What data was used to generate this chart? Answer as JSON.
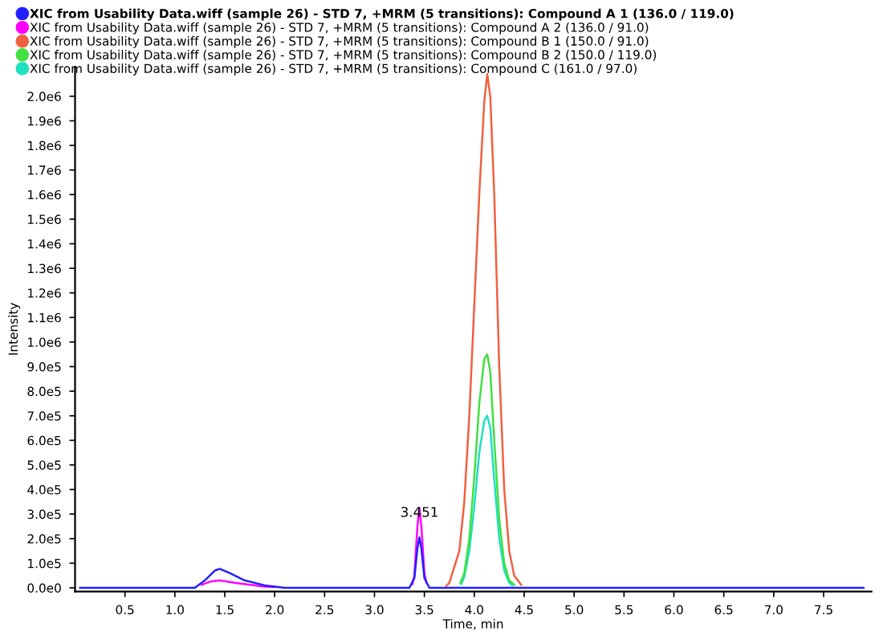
{
  "chart_data": {
    "type": "line",
    "xlabel": "Time, min",
    "ylabel": "Intensity",
    "xlim": [
      0,
      7.98
    ],
    "ylim": [
      -15000,
      2120000
    ],
    "xticks": [
      0.5,
      {
        "value": 1,
        "label": "1.0"
      },
      1.5,
      {
        "value": 2,
        "label": "2.0"
      },
      2.5,
      {
        "value": 3,
        "label": "3.0"
      },
      3.5,
      {
        "value": 4,
        "label": "4.0"
      },
      4.5,
      {
        "value": 5,
        "label": "5.0"
      },
      5.5,
      {
        "value": 6,
        "label": "6.0"
      },
      6.5,
      {
        "value": 7,
        "label": "7.0"
      },
      7.5
    ],
    "yticks": [
      {
        "value": 0,
        "label": "0.0e0"
      },
      {
        "value": 100000,
        "label": "1.0e5"
      },
      {
        "value": 200000,
        "label": "2.0e5"
      },
      {
        "value": 300000,
        "label": "3.0e5"
      },
      {
        "value": 400000,
        "label": "4.0e5"
      },
      {
        "value": 500000,
        "label": "5.0e5"
      },
      {
        "value": 600000,
        "label": "6.0e5"
      },
      {
        "value": 700000,
        "label": "7.0e5"
      },
      {
        "value": 800000,
        "label": "8.0e5"
      },
      {
        "value": 900000,
        "label": "9.0e5"
      },
      {
        "value": 1000000,
        "label": "1.0e6"
      },
      {
        "value": 1100000,
        "label": "1.1e6"
      },
      {
        "value": 1200000,
        "label": "1.2e6"
      },
      {
        "value": 1300000,
        "label": "1.3e6"
      },
      {
        "value": 1400000,
        "label": "1.4e6"
      },
      {
        "value": 1500000,
        "label": "1.5e6"
      },
      {
        "value": 1600000,
        "label": "1.6e6"
      },
      {
        "value": 1700000,
        "label": "1.7e6"
      },
      {
        "value": 1800000,
        "label": "1.8e6"
      },
      {
        "value": 1900000,
        "label": "1.9e6"
      },
      {
        "value": 2000000,
        "label": "2.0e6"
      }
    ],
    "grid": false,
    "legend": "top left",
    "marker": "none",
    "line_style": "solid",
    "annotations": [
      {
        "text": "3.451",
        "x": 3.451,
        "y": 205000
      }
    ],
    "series": [
      {
        "name": "XIC from Usability Data.wiff (sample 26) - STD 7, +MRM (5 transitions): Compound C (161.0 / 97.0)",
        "color": "#20e0c0",
        "x": [
          3.87,
          3.9,
          3.95,
          4.0,
          4.05,
          4.1,
          4.13,
          4.16,
          4.2,
          4.25,
          4.3,
          4.35,
          4.38
        ],
        "values": [
          15000,
          45000,
          150000,
          330000,
          550000,
          680000,
          700000,
          650000,
          440000,
          200000,
          70000,
          20000,
          10000
        ]
      },
      {
        "name": "XIC from Usability Data.wiff (sample 26) - STD 7, +MRM (5 transitions): Compound B 2 (150.0 / 119.0)",
        "color": "#40e040",
        "x": [
          3.86,
          3.9,
          3.95,
          4.0,
          4.05,
          4.1,
          4.13,
          4.16,
          4.2,
          4.25,
          4.3,
          4.35,
          4.4
        ],
        "values": [
          20000,
          60000,
          200000,
          450000,
          750000,
          930000,
          950000,
          880000,
          600000,
          280000,
          100000,
          30000,
          12000
        ]
      },
      {
        "name": "XIC from Usability Data.wiff (sample 26) - STD 7, +MRM (5 transitions): Compound B 1 (150.0 / 91.0)",
        "color": "#f06040",
        "x": [
          3.72,
          3.75,
          3.85,
          3.9,
          3.95,
          4.0,
          4.05,
          4.1,
          4.13,
          4.16,
          4.2,
          4.25,
          4.3,
          4.35,
          4.4,
          4.47
        ],
        "values": [
          8000,
          20000,
          150000,
          350000,
          700000,
          1150000,
          1600000,
          1980000,
          2090000,
          2000000,
          1600000,
          900000,
          400000,
          150000,
          50000,
          12000
        ]
      },
      {
        "name": "XIC from Usability Data.wiff (sample 26) - STD 7, +MRM (5 transitions): Compound A 2 (136.0 / 91.0)",
        "color": "#ff00ff",
        "x": [
          1.27,
          1.35,
          1.45,
          1.6,
          1.9,
          2.0,
          2.7,
          3.38,
          3.4,
          3.43,
          3.45,
          3.47,
          3.5,
          3.52
        ],
        "values": [
          12000,
          25000,
          30000,
          20000,
          5000,
          3000,
          null,
          15000,
          50000,
          250000,
          326000,
          250000,
          60000,
          20000
        ]
      },
      {
        "name": "XIC from Usability Data.wiff (sample 26) - STD 7, +MRM (5 transitions): Compound A 1 (136.0 / 119.0)",
        "color": "#2020ff",
        "x": [
          0.05,
          1.2,
          1.3,
          1.4,
          1.45,
          1.55,
          1.7,
          1.9,
          2.1,
          3.35,
          3.4,
          3.43,
          3.45,
          3.47,
          3.5,
          3.55,
          7.9
        ],
        "values": [
          0,
          0,
          30000,
          70000,
          77000,
          60000,
          30000,
          10000,
          0,
          0,
          40000,
          160000,
          205000,
          160000,
          40000,
          0,
          0
        ]
      }
    ]
  }
}
